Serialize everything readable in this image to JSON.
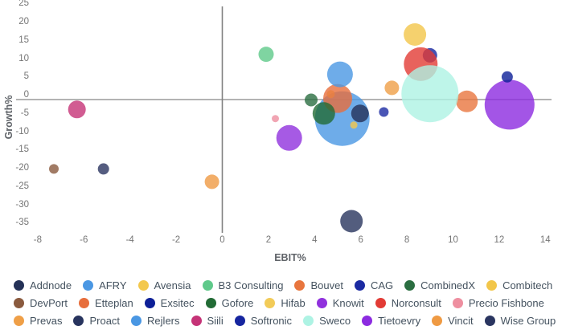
{
  "chart_data": {
    "type": "scatter",
    "title": "",
    "xlabel": "EBIT%",
    "ylabel": "Growth%",
    "xlim": [
      -8,
      14
    ],
    "ylim": [
      -35,
      25
    ],
    "x_ticks": [
      -8,
      -6,
      -4,
      -2,
      0,
      2,
      4,
      6,
      8,
      10,
      12,
      14
    ],
    "y_ticks": [
      25,
      20,
      15,
      10,
      5,
      0,
      -5,
      -10,
      -15,
      -20,
      -25,
      -30,
      -35
    ],
    "grid": false,
    "legend_position": "bottom",
    "bubble_opacity": 0.8,
    "axis_colors": {
      "zero_line_x": "#808080",
      "zero_line_y": "#b3b3b3"
    },
    "series": [
      {
        "name": "Softronic",
        "x": 9.0,
        "y": 12.1,
        "r": 9,
        "color": "#16259f"
      },
      {
        "name": "Norconsult",
        "x": 8.6,
        "y": 9.7,
        "r": 21,
        "color": "#e23b35"
      },
      {
        "name": "Bouvet",
        "x": 10.6,
        "y": -0.5,
        "r": 13.5,
        "color": "#e8763e"
      },
      {
        "name": "AFRY",
        "x": 5.2,
        "y": -5.2,
        "r": 34,
        "color": "#4a97e3"
      },
      {
        "name": "Tietoevry",
        "x": 12.45,
        "y": -1.4,
        "r": 31,
        "color": "#8c2be0"
      },
      {
        "name": "Sweco",
        "x": 9.0,
        "y": 1.6,
        "r": 35.5,
        "color": "#aef3e4"
      },
      {
        "name": "Hifab",
        "x": 4.7,
        "y": 1.5,
        "r": 5,
        "color": "#f2cb58"
      },
      {
        "name": "Etteplan",
        "x": 5.0,
        "y": 0.3,
        "r": 18,
        "color": "#e76e3c"
      },
      {
        "name": "Knowit",
        "x": 2.9,
        "y": -10.5,
        "r": 16,
        "color": "#9031dd"
      },
      {
        "name": "Rejlers",
        "x": 5.1,
        "y": 6.9,
        "r": 16,
        "color": "#4a97e3"
      },
      {
        "name": "Combitech",
        "x": 8.35,
        "y": 17.8,
        "r": 14,
        "color": "#f2c64a"
      },
      {
        "name": "Gofore",
        "x": 4.4,
        "y": -3.8,
        "r": 14,
        "color": "#226b35"
      },
      {
        "name": "Proact",
        "x": 5.6,
        "y": -33.3,
        "r": 14,
        "color": "#28345e"
      },
      {
        "name": "Siili",
        "x": -6.3,
        "y": -2.7,
        "r": 11,
        "color": "#c53377"
      },
      {
        "name": "Addnode",
        "x": 5.97,
        "y": -3.8,
        "r": 11,
        "color": "#243157"
      },
      {
        "name": "B3 Consulting",
        "x": 1.9,
        "y": 12.4,
        "r": 9.5,
        "color": "#5fc98a"
      },
      {
        "name": "Prevas",
        "x": 7.35,
        "y": 3.2,
        "r": 9,
        "color": "#ef9f47"
      },
      {
        "name": "Vincit",
        "x": -0.45,
        "y": -22.5,
        "r": 9,
        "color": "#ef9a43"
      },
      {
        "name": "CombinedX",
        "x": 3.85,
        "y": -0.1,
        "r": 8,
        "color": "#2b6e41"
      },
      {
        "name": "DevPort",
        "x": -7.3,
        "y": -19.0,
        "r": 6,
        "color": "#8a5a3e"
      },
      {
        "name": "Wise Group",
        "x": -5.15,
        "y": -19.0,
        "r": 7,
        "color": "#2a3560"
      },
      {
        "name": "Exsitec",
        "x": 12.35,
        "y": 6.2,
        "r": 7,
        "color": "#0d1f97"
      },
      {
        "name": "CAG",
        "x": 7.0,
        "y": -3.4,
        "r": 6,
        "color": "#1b2aa2"
      },
      {
        "name": "Precio Fishbone",
        "x": 2.3,
        "y": -5.2,
        "r": 4.5,
        "color": "#ee8fa0"
      },
      {
        "name": "Avensia",
        "x": 5.7,
        "y": -7.0,
        "r": 4.5,
        "color": "#f3c84d"
      }
    ],
    "legend_rows": [
      [
        "Addnode",
        "AFRY",
        "Avensia",
        "B3 Consulting",
        "Bouvet",
        "CAG",
        "CombinedX",
        "Combitech"
      ],
      [
        "DevPort",
        "Etteplan",
        "Exsitec",
        "Gofore",
        "Hifab",
        "Knowit",
        "Norconsult",
        "Precio Fishbone"
      ],
      [
        "Prevas",
        "Proact",
        "Rejlers",
        "Siili",
        "Softronic",
        "Sweco",
        "Tietoevry",
        "Vincit",
        "Wise Group"
      ]
    ]
  }
}
